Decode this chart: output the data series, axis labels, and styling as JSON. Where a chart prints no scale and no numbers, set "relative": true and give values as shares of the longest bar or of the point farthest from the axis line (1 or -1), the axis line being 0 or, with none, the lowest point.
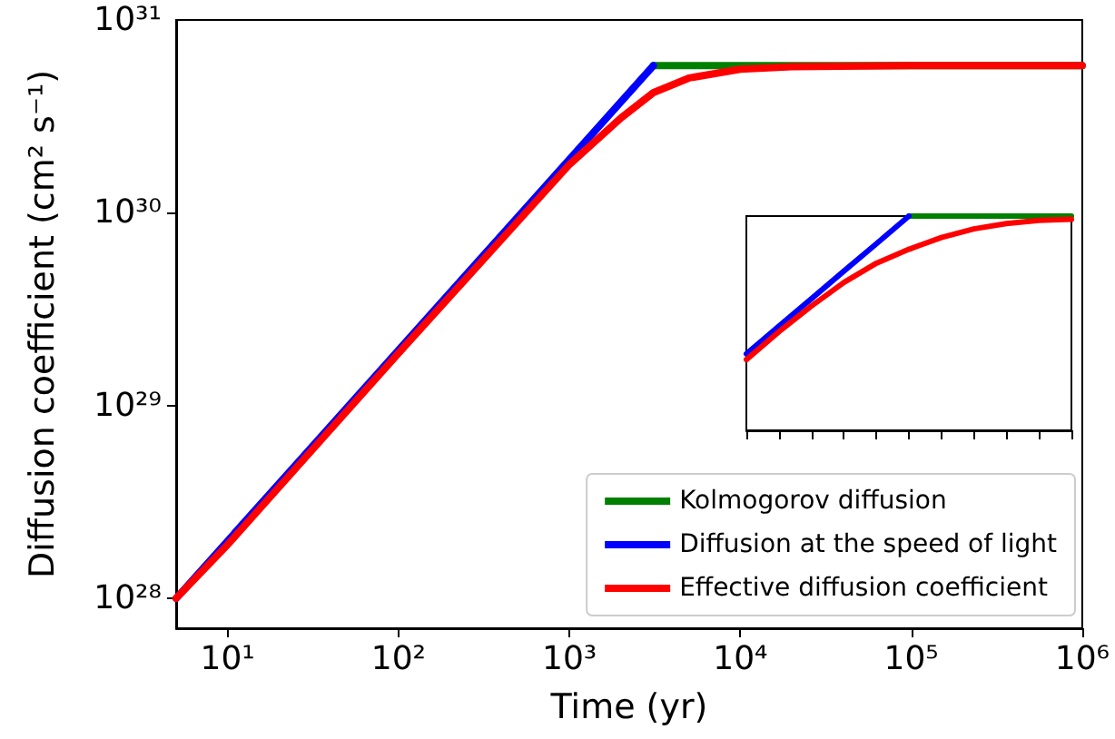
{
  "chart_data": [
    {
      "type": "line",
      "xlabel": "Time (yr)",
      "ylabel": "Diffusion coefficient (cm² s⁻¹)",
      "log": "xy",
      "xlim": [
        5,
        1000000
      ],
      "ylim": [
        7e+27,
        1e+31
      ],
      "xticks": [
        {
          "value": 10,
          "label": "10¹"
        },
        {
          "value": 100,
          "label": "10²"
        },
        {
          "value": 1000,
          "label": "10³"
        },
        {
          "value": 10000,
          "label": "10⁴"
        },
        {
          "value": 100000,
          "label": "10⁵"
        },
        {
          "value": 1000000,
          "label": "10⁶"
        }
      ],
      "yticks": [
        {
          "value": 1e+28,
          "label": "10²⁸"
        },
        {
          "value": 1e+29,
          "label": "10²⁹"
        },
        {
          "value": 1e+30,
          "label": "10³⁰"
        },
        {
          "value": 1e+31,
          "label": "10³¹"
        }
      ],
      "legend": "bottom right",
      "grid": false,
      "series": [
        {
          "name": "Kolmogorov diffusion",
          "color": "#008000",
          "x": [
            3100,
            1000000
          ],
          "values": [
            5.8e+30,
            5.8e+30
          ]
        },
        {
          "name": "Diffusion at the speed of light",
          "color": "#0000ff",
          "x": [
            5,
            3100
          ],
          "values": [
            1e+28,
            5.8e+30
          ]
        },
        {
          "name": "Effective diffusion coefficient",
          "color": "#ff0000",
          "x": [
            5,
            10,
            100,
            1000,
            2000,
            3100,
            5000,
            10000,
            20000,
            100000,
            1000000
          ],
          "values": [
            1e+28,
            1.9e+28,
            1.87e+29,
            1.78e+30,
            3.1e+30,
            4.2e+30,
            5e+30,
            5.55e+30,
            5.72e+30,
            5.8e+30,
            5.8e+30
          ]
        }
      ]
    },
    {
      "type": "line",
      "relative": true,
      "tick_labels": false,
      "categories": [
        null,
        null,
        null,
        null,
        null,
        null,
        null,
        null,
        null,
        null,
        null
      ],
      "series": [
        {
          "color": "#008000",
          "values": [
            null,
            null,
            null,
            null,
            null,
            1.0,
            1.0,
            1.0,
            1.0,
            1.0,
            1.0
          ]
        },
        {
          "color": "#0000ff",
          "values": [
            0.357,
            0.486,
            0.614,
            0.743,
            0.871,
            1.0,
            null,
            null,
            null,
            null,
            null
          ]
        },
        {
          "color": "#ff0000",
          "values": [
            0.33,
            0.46,
            0.58,
            0.69,
            0.78,
            0.845,
            0.9,
            0.94,
            0.965,
            0.98,
            0.985
          ]
        }
      ]
    }
  ]
}
